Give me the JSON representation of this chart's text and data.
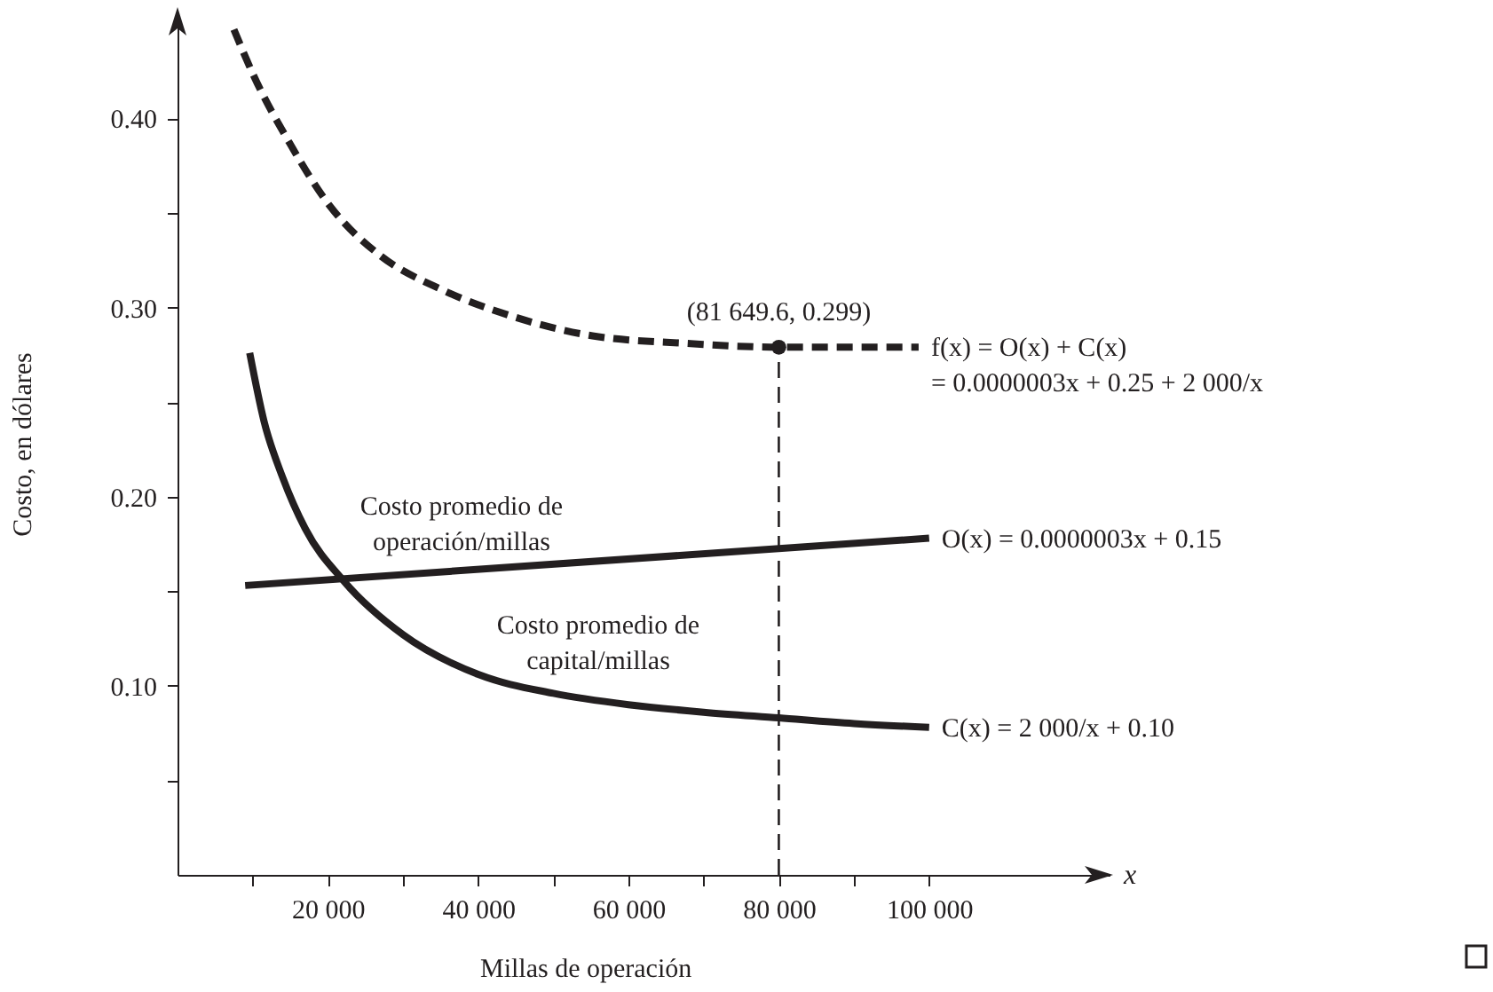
{
  "chart_data": {
    "type": "line",
    "xlabel": "Millas de operación",
    "ylabel": "Costo, en dólares",
    "xlim": [
      0,
      124000
    ],
    "ylim": [
      0,
      0.456
    ],
    "xticks": [
      {
        "value": 10000,
        "label": null
      },
      {
        "value": 20000,
        "label": "20 000"
      },
      {
        "value": 30000,
        "label": null
      },
      {
        "value": 40000,
        "label": "40 000"
      },
      {
        "value": 50000,
        "label": null
      },
      {
        "value": 60000,
        "label": "60 000"
      },
      {
        "value": 70000,
        "label": null
      },
      {
        "value": 80000,
        "label": "80 000"
      },
      {
        "value": 90000,
        "label": null
      },
      {
        "value": 100000,
        "label": "100 000"
      }
    ],
    "yticks": [
      {
        "value": 0.05,
        "label": null
      },
      {
        "value": 0.1,
        "label": "0.10"
      },
      {
        "value": 0.15,
        "label": null
      },
      {
        "value": 0.2,
        "label": "0.20"
      },
      {
        "value": 0.25,
        "label": null
      },
      {
        "value": 0.3,
        "label": "0.30"
      },
      {
        "value": 0.35,
        "label": null
      },
      {
        "value": 0.4,
        "label": "0.40"
      }
    ],
    "series": [
      {
        "name": "f(x) = O(x) + C(x)\n= 0.0000003x + 0.25 + 2 000/x",
        "color": "#231f20",
        "line_style": "dashed",
        "x": [
          7500,
          10200,
          14900,
          20400,
          26800,
          35400,
          44000,
          55200,
          67800,
          80000,
          98600
        ],
        "values": [
          0.447,
          0.422,
          0.387,
          0.353,
          0.328,
          0.309,
          0.296,
          0.285,
          0.281,
          0.279,
          0.279
        ]
      },
      {
        "name": "O(x) = 0.0000003x + 0.15",
        "color": "#231f20",
        "line_style": "solid",
        "x": [
          9000,
          100000
        ],
        "values": [
          0.153,
          0.178
        ]
      },
      {
        "name": "C(x) = 2 000/x + 0.10",
        "color": "#231f20",
        "line_style": "solid",
        "x": [
          9600,
          11500,
          14000,
          17000,
          22200,
          30000,
          40000,
          50000,
          60000,
          70000,
          80000,
          90000,
          100000
        ],
        "values": [
          0.276,
          0.24,
          0.21,
          0.183,
          0.155,
          0.127,
          0.106,
          0.096,
          0.09,
          0.086,
          0.083,
          0.08,
          0.078
        ]
      },
      {
        "type": "scatter",
        "marker": "circle",
        "color": "#231f20",
        "x": [
          80000
        ],
        "values": [
          0.279
        ]
      }
    ],
    "ref_lines": [
      {
        "axis": "x",
        "value": 80000,
        "line_style": "dashed",
        "color": "#231f20"
      }
    ],
    "annotations": [
      {
        "text": "(81 649.6, 0.299)",
        "x": 80000,
        "y": 0.279
      },
      "Costo promedio de\noperación/millas",
      "Costo promedio de\ncapital/millas",
      "x"
    ]
  }
}
